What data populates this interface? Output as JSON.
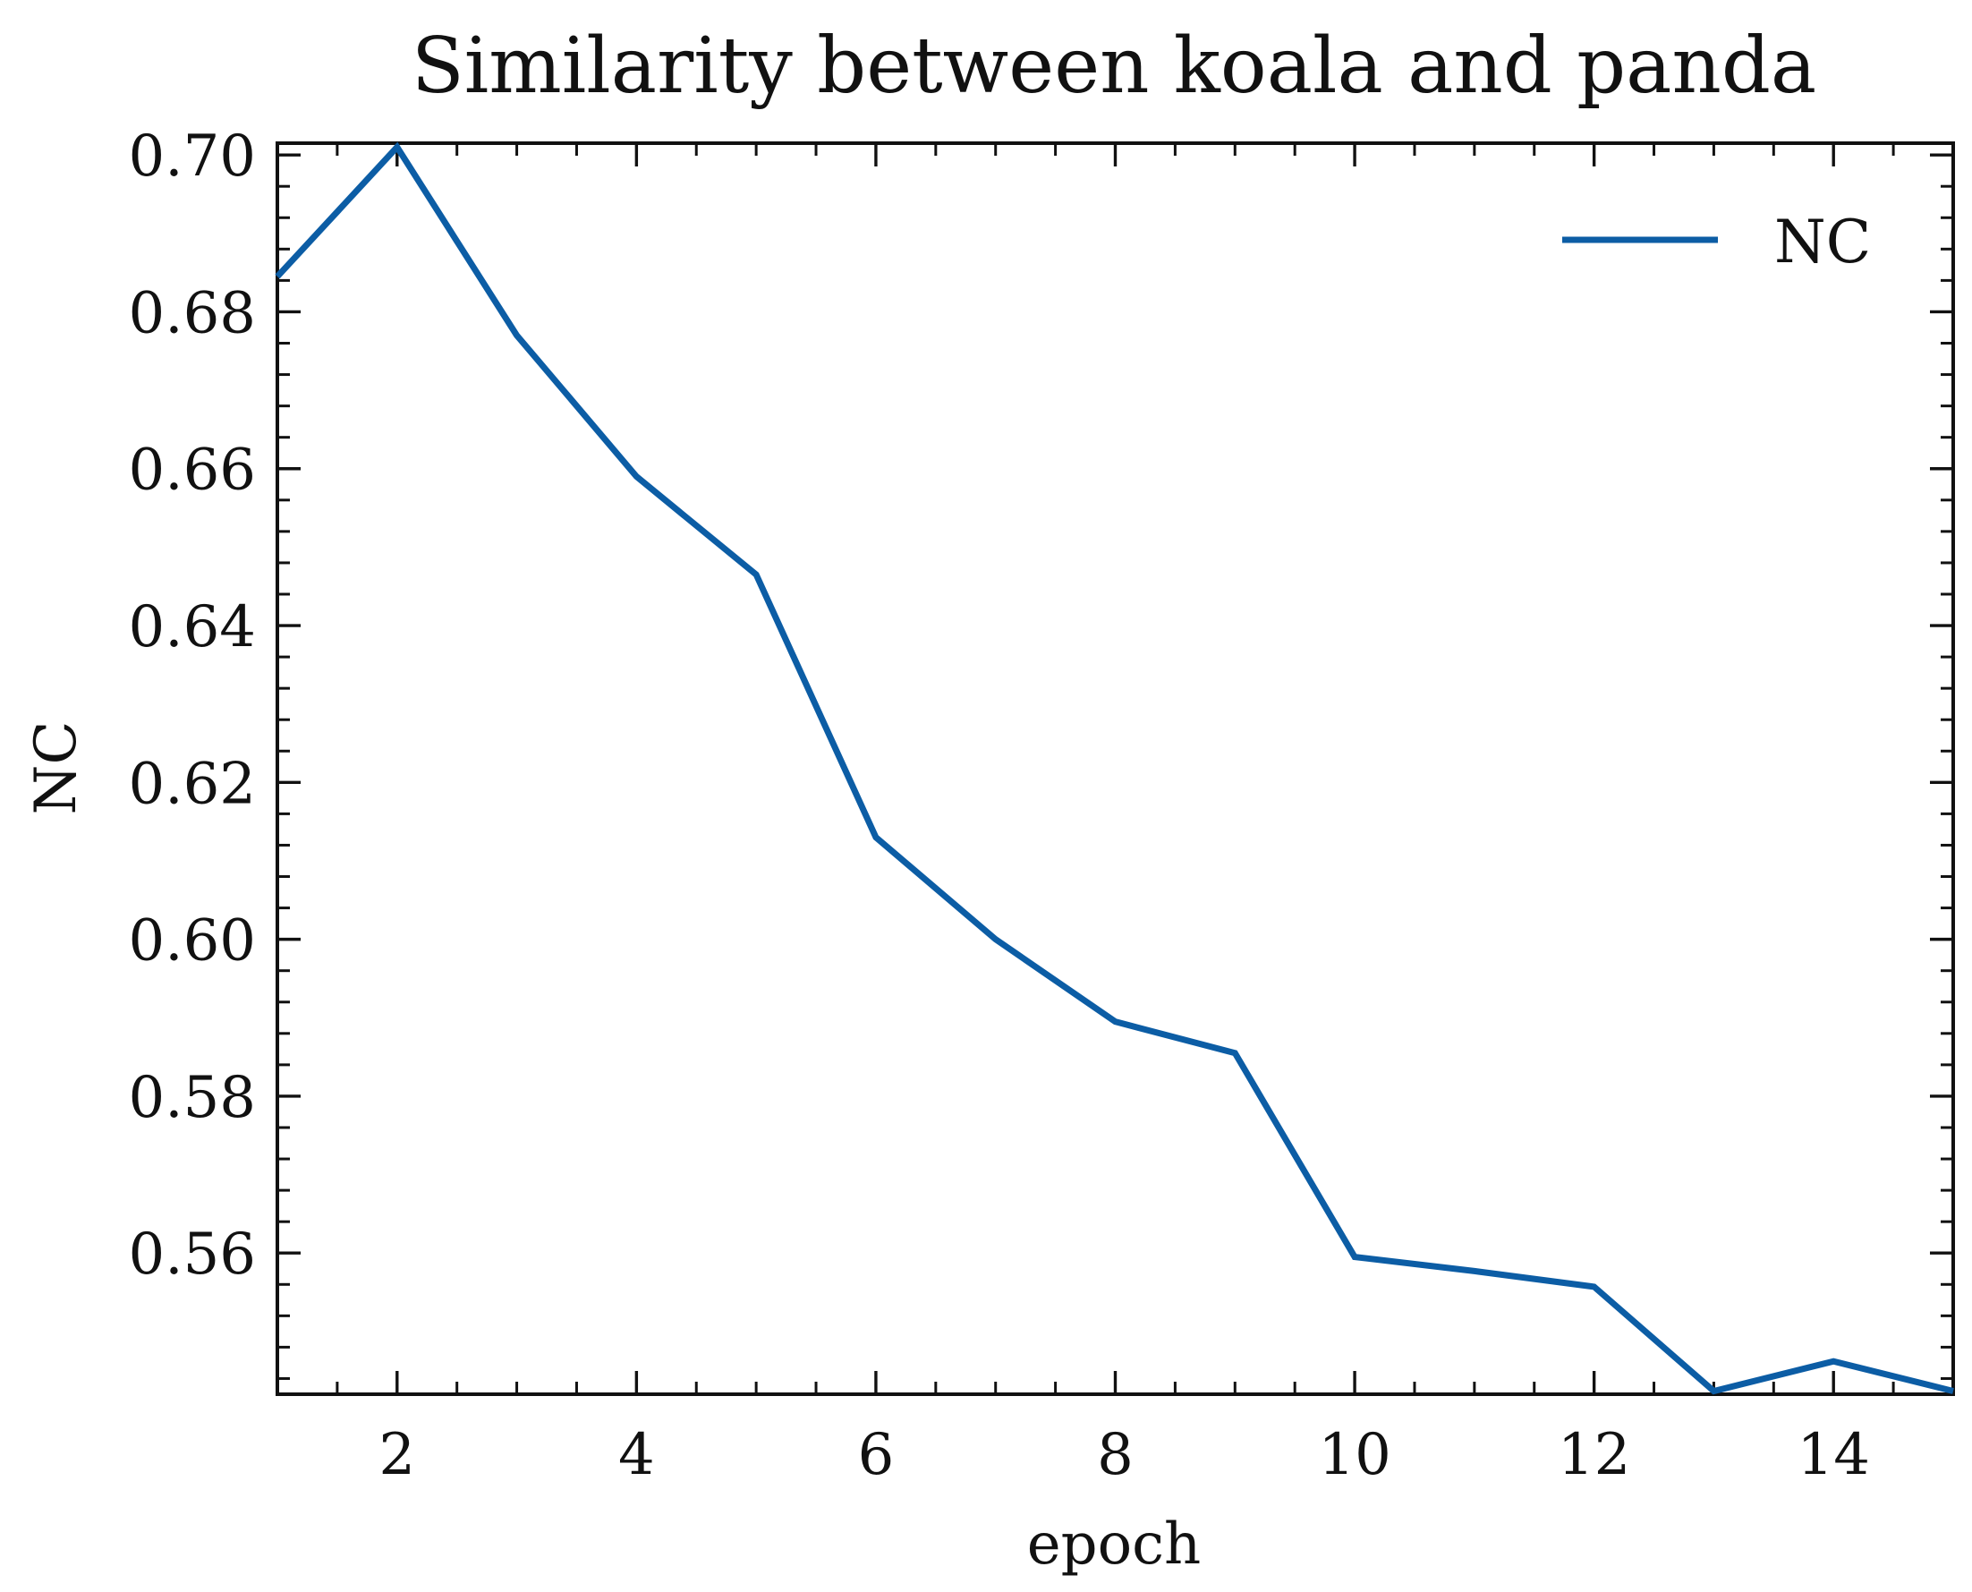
{
  "chart_data": {
    "type": "line",
    "title": "Similarity between koala and panda",
    "xlabel": "epoch",
    "ylabel": "NC",
    "xlim": [
      1,
      15
    ],
    "ylim": [
      0.542,
      0.7015
    ],
    "xticks": [
      2,
      4,
      6,
      8,
      10,
      12,
      14
    ],
    "xtick_labels": [
      "2",
      "4",
      "6",
      "8",
      "10",
      "12",
      "14"
    ],
    "yticks": [
      0.56,
      0.58,
      0.6,
      0.62,
      0.64,
      0.66,
      0.68,
      0.7
    ],
    "ytick_labels": [
      "0.56",
      "0.58",
      "0.60",
      "0.62",
      "0.64",
      "0.66",
      "0.68",
      "0.70"
    ],
    "grid": false,
    "legend": {
      "position": "top-right",
      "entries": [
        "NC"
      ]
    },
    "series": [
      {
        "name": "NC",
        "color": "#0C5DA5",
        "x": [
          1,
          2,
          3,
          4,
          5,
          6,
          7,
          8,
          9,
          10,
          11,
          12,
          13,
          14,
          15
        ],
        "values": [
          0.6845,
          0.701,
          0.677,
          0.659,
          0.6465,
          0.613,
          0.6,
          0.5895,
          0.5855,
          0.5595,
          0.5577,
          0.5557,
          0.5424,
          0.5462,
          0.5424
        ]
      }
    ]
  }
}
